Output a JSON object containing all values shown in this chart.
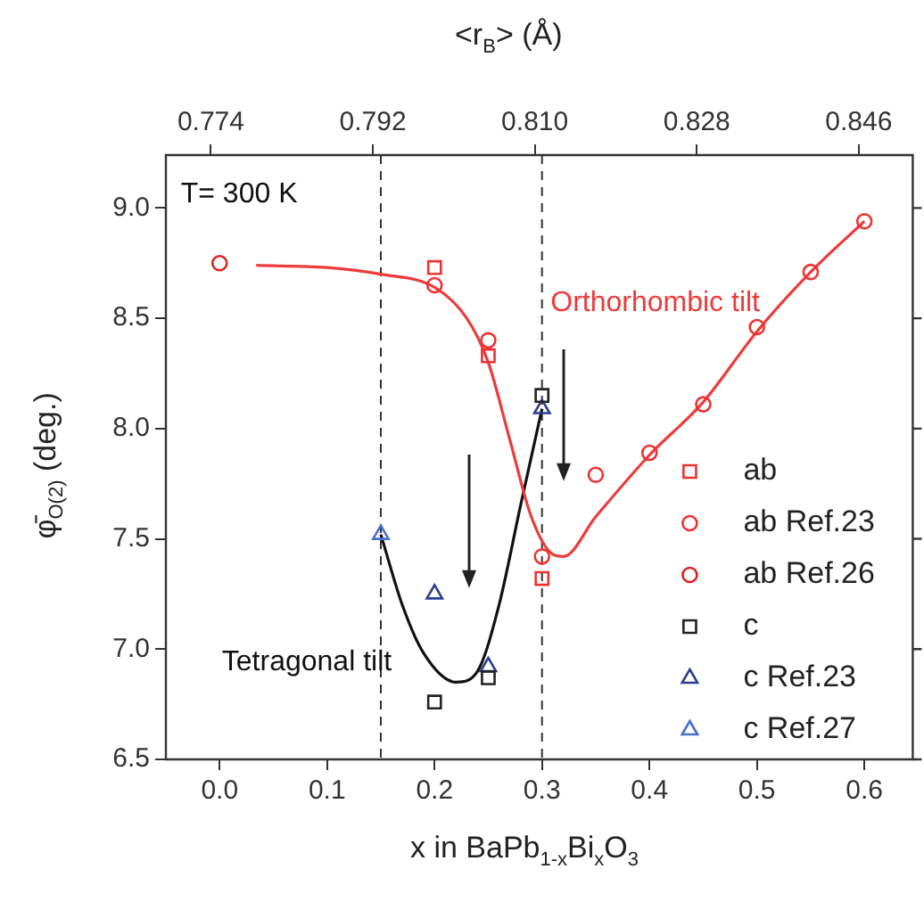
{
  "chart_data": {
    "type": "scatter",
    "xlabel": "x in BaPb$_{1-x}$Bi$_{x}$O$_{3}$",
    "ylabel": "φ̄$_{O(2)}$ (deg.)",
    "x2label": "<r$_{B}$> (Å)",
    "xlim": [
      -0.05,
      0.645
    ],
    "xticks": [
      {
        "value": 0,
        "label": "0.0"
      },
      0.1,
      0.2,
      0.3,
      0.4,
      0.5,
      0.6
    ],
    "x2lim": [
      0.769,
      0.852
    ],
    "x2ticks": [
      0.774,
      0.792,
      {
        "value": 0.81,
        "label": "0.810"
      },
      0.828,
      0.846
    ],
    "ylim": [
      6.5,
      9.24
    ],
    "yticks": [
      6.5,
      {
        "value": 7,
        "label": "7.0"
      },
      7.5,
      {
        "value": 8,
        "label": "8.0"
      },
      8.5,
      {
        "value": 9,
        "label": "9.0"
      }
    ],
    "grid": false,
    "legend": "right",
    "series": [
      {
        "type": "line",
        "color": "#ee3b3b",
        "marker": "none",
        "line_style": "solid",
        "x": [
          0.034,
          0.1,
          0.15,
          0.2,
          0.23,
          0.25,
          0.27,
          0.29,
          0.31,
          0.32,
          0.35,
          0.4,
          0.45,
          0.5,
          0.55,
          0.6
        ],
        "values": [
          8.74,
          8.73,
          8.7,
          8.64,
          8.5,
          8.3,
          7.95,
          7.6,
          7.43,
          7.42,
          7.6,
          7.88,
          8.12,
          8.44,
          8.71,
          8.94
        ]
      },
      {
        "type": "line",
        "color": "#111111",
        "marker": "none",
        "line_style": "solid",
        "x": [
          0.15,
          0.17,
          0.19,
          0.22,
          0.24,
          0.26,
          0.28,
          0.3
        ],
        "values": [
          7.52,
          7.2,
          6.98,
          6.85,
          6.9,
          7.2,
          7.65,
          8.09
        ]
      },
      {
        "name": "ab",
        "color": "#ee3333",
        "marker": "square",
        "x": [
          0.2,
          0.25,
          0.3
        ],
        "values": [
          8.73,
          8.33,
          7.32
        ]
      },
      {
        "name": "ab Ref.23",
        "color": "#ee3333",
        "marker": "circle",
        "x": [
          0.2,
          0.25,
          0.3,
          0.35,
          0.4,
          0.45,
          0.5,
          0.55,
          0.6
        ],
        "values": [
          8.65,
          8.4,
          7.42,
          7.79,
          7.89,
          8.11,
          8.46,
          8.71,
          8.94
        ]
      },
      {
        "name": "ab Ref.26",
        "color": "#dd2222",
        "marker": "circle",
        "x": [
          0.0
        ],
        "values": [
          8.75
        ]
      },
      {
        "name": "c",
        "color": "#222222",
        "marker": "square",
        "x": [
          0.2,
          0.25,
          0.3
        ],
        "values": [
          6.76,
          6.87,
          8.15
        ]
      },
      {
        "name": "c Ref.23",
        "color": "#2a3f8f",
        "marker": "triangle",
        "x": [
          0.2,
          0.25,
          0.3
        ],
        "values": [
          7.25,
          6.92,
          8.09
        ]
      },
      {
        "name": "c Ref.27",
        "color": "#4a6fd0",
        "marker": "triangle",
        "x": [
          0.15
        ],
        "values": [
          7.52
        ]
      }
    ],
    "ref_lines": [
      {
        "axis": "x",
        "value": 0.15,
        "color": "#333333",
        "line_style": "dashed"
      },
      {
        "axis": "x",
        "value": 0.3,
        "color": "#333333",
        "line_style": "dashed"
      }
    ],
    "annotations": [
      "T= 300 K",
      "Orthorhombic tilt",
      "Tetragonal tilt"
    ]
  }
}
